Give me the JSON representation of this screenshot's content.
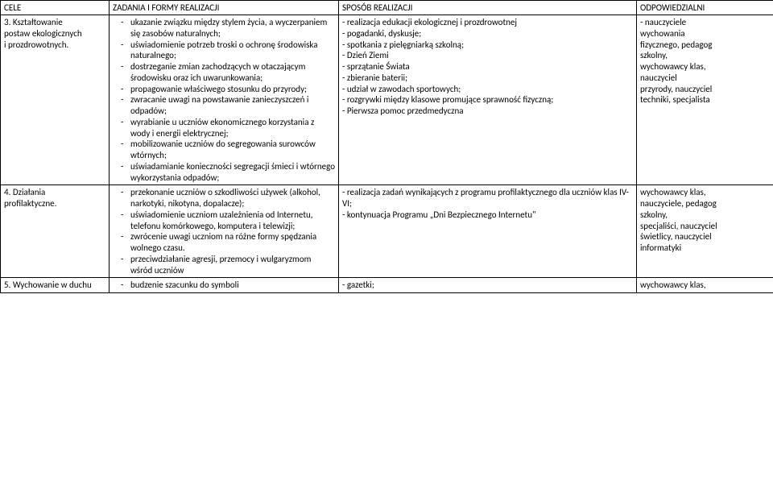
{
  "headers": {
    "c1": "CELE",
    "c2": "ZADANIA I FORMY REALIZACJI",
    "c3": "SPOSÓB REALIZACJI",
    "c4": "ODPOWIEDZIALNI"
  },
  "rows": [
    {
      "cele": {
        "num": "3.",
        "lines": [
          "Kształtowanie",
          "postaw ekologicznych",
          "i prozdrowotnych."
        ]
      },
      "zadania": [
        "ukazanie związku między stylem życia, a wyczerpaniem się zasobów naturalnych;",
        "uświadomienie potrzeb troski o ochronę środowiska naturalnego;",
        "dostrzeganie zmian zachodzących w otaczającym środowisku oraz ich uwarunkowania;",
        "propagowanie właściwego stosunku do przyrody;",
        "zwracanie uwagi na powstawanie zanieczyszczeń i odpadów;",
        "wyrabianie u uczniów ekonomicznego korzystania z wody i energii elektrycznej;",
        "mobilizowanie uczniów do segregowania surowców wtórnych;",
        "uświadamianie konieczności segregacji śmieci i wtórnego wykorzystania odpadów;"
      ],
      "sposob": [
        "- realizacja edukacji ekologicznej i prozdrowotnej",
        "- pogadanki, dyskusje;",
        "- spotkania z pielęgniarką szkolną;",
        "- Dzień Ziemi",
        "- sprzątanie Świata",
        "- zbieranie baterii;",
        "- udział w zawodach sportowych;",
        "- rozgrywki między klasowe promujące sprawność fizyczną;",
        "- Pierwsza pomoc przedmedyczna"
      ],
      "odp": [
        "- nauczyciele",
        "wychowania",
        "fizycznego, pedagog",
        "szkolny,",
        "wychowawcy klas,",
        "nauczyciel",
        "przyrody, nauczyciel",
        "techniki, specjalista"
      ]
    },
    {
      "cele": {
        "num": "4.",
        "lines": [
          "Działania",
          "profilaktyczne."
        ]
      },
      "zadania": [
        "przekonanie uczniów o szkodliwości używek (alkohol, narkotyki, nikotyna, dopalacze);",
        "uświadomienie uczniom uzależnienia od Internetu, telefonu komórkowego, komputera i telewizji;",
        "zwrócenie uwagi uczniom na różne formy spędzania wolnego czasu.",
        "przeciwdziałanie agresji, przemocy i wulgaryzmom wśród uczniów"
      ],
      "sposob": [
        "- realizacja zadań wynikających z programu profilaktycznego dla uczniów klas IV-VI;",
        "- kontynuacja Programu „Dni Bezpiecznego Internetu\""
      ],
      "odp": [
        "wychowawcy klas,",
        "nauczyciele, pedagog",
        "szkolny,",
        "specjaliści, nauczyciel",
        "świetlicy, nauczyciel",
        "informatyki"
      ]
    },
    {
      "cele": {
        "num": "5.",
        "lines": [
          "Wychowanie w duchu"
        ]
      },
      "zadania": [
        "budzenie szacunku do symboli"
      ],
      "sposob": [
        "- gazetki;"
      ],
      "odp": [
        "wychowawcy klas,"
      ]
    }
  ]
}
